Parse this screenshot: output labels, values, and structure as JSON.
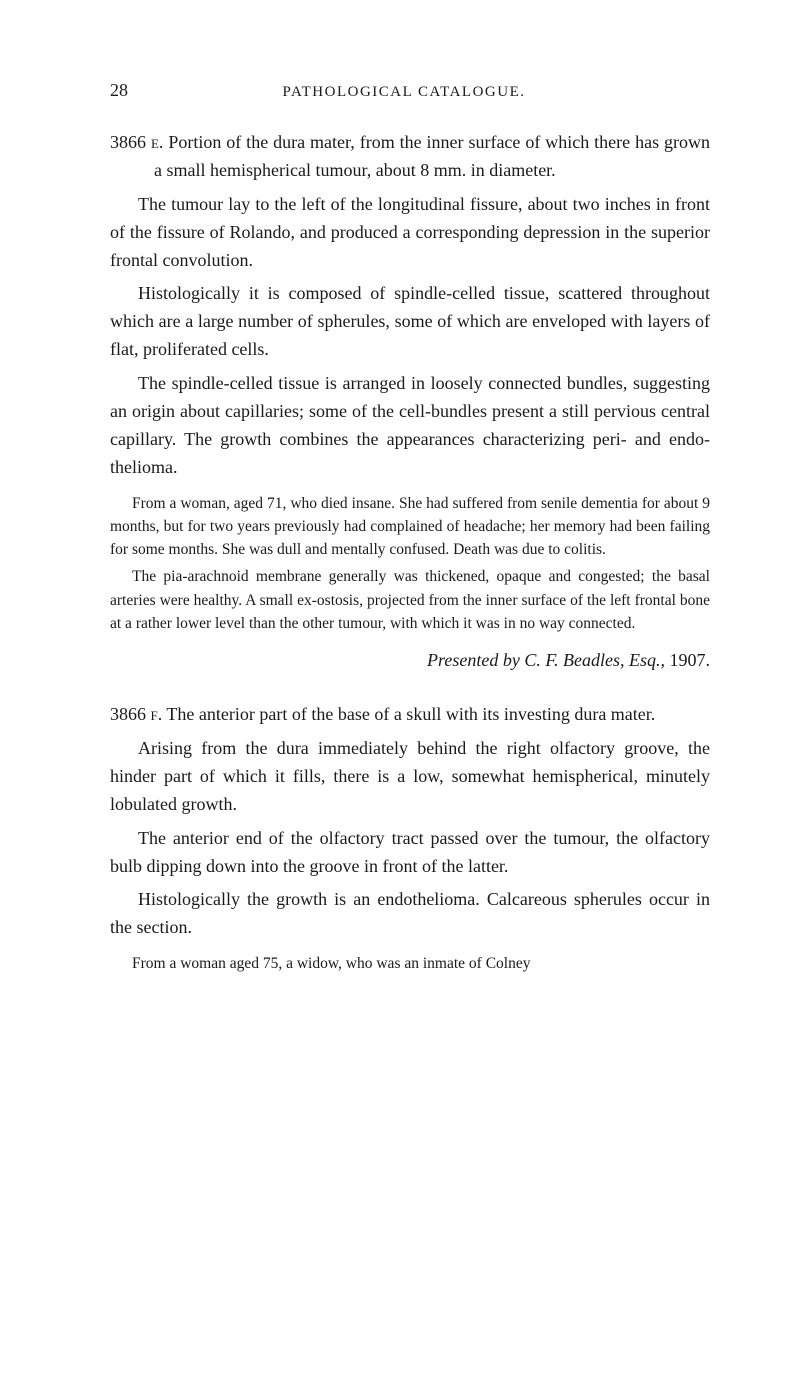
{
  "page": {
    "number": "28",
    "header": "PATHOLOGICAL CATALOGUE."
  },
  "entries": [
    {
      "id": "3866",
      "suffix": "e",
      "paragraphs": [
        "Portion of the dura mater, from the inner surface of which there has grown a small hemispherical tumour, about 8 mm. in diameter.",
        "The tumour lay to the left of the longitudinal fissure, about two inches in front of the fissure of Rolando, and produced a corresponding depression in the superior frontal convolution.",
        "Histologically it is composed of spindle-celled tissue, scattered throughout which are a large number of spherules, some of which are enveloped with layers of flat, proliferated cells.",
        "The spindle-celled tissue is arranged in loosely connected bundles, suggesting an origin about capillaries; some of the cell-bundles present a still pervious central capillary. The growth combines the appearances characterizing peri- and endo-thelioma."
      ],
      "case_note": [
        "From a woman, aged 71, who died insane. She had suffered from senile dementia for about 9 months, but for two years previously had complained of headache; her memory had been failing for some months. She was dull and mentally confused. Death was due to colitis.",
        "The pia-arachnoid membrane generally was thickened, opaque and congested; the basal arteries were healthy. A small ex-ostosis, projected from the inner surface of the left frontal bone at a rather lower level than the other tumour, with which it was in no way connected."
      ],
      "presented": {
        "prefix": "Presented by C. F. Beadles, Esq., ",
        "year": "1907."
      }
    },
    {
      "id": "3866",
      "suffix": "f",
      "paragraphs": [
        "The anterior part of the base of a skull with its investing dura mater.",
        "Arising from the dura immediately behind the right olfactory groove, the hinder part of which it fills, there is a low, somewhat hemispherical, minutely lobulated growth.",
        "The anterior end of the olfactory tract passed over the tumour, the olfactory bulb dipping down into the groove in front of the latter.",
        "Histologically the growth is an endothelioma. Calcareous spherules occur in the section."
      ],
      "case_note": [
        "From a woman aged 75, a widow, who was an inmate of Colney"
      ]
    }
  ]
}
